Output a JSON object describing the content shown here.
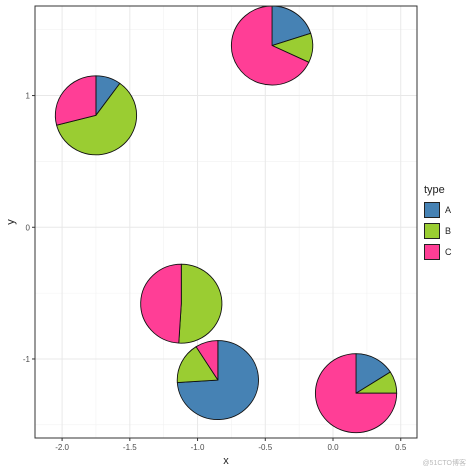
{
  "chart_data": {
    "type": "pie-scatter",
    "xlabel": "x",
    "ylabel": "y",
    "xlim": [
      -2.2,
      0.62
    ],
    "ylim": [
      -1.6,
      1.68
    ],
    "xticks": [
      -2.0,
      -1.5,
      -1.0,
      -0.5,
      0.0,
      0.5
    ],
    "xtick_labels": [
      "-2.0",
      "-1.5",
      "-1.0",
      "-0.5",
      "0.0",
      "0.5"
    ],
    "yticks": [
      -1,
      0,
      1
    ],
    "ytick_labels": [
      "-1",
      "0",
      "1"
    ],
    "grid": true,
    "legend": {
      "title": "type",
      "position": "right",
      "entries": [
        "A",
        "B",
        "C"
      ]
    },
    "colors": {
      "A": "#4682B4",
      "B": "#9ACD32",
      "C": "#FF3E96"
    },
    "pies": [
      {
        "x": -1.75,
        "y": 0.85,
        "radius": 0.3,
        "values": {
          "A": 0.1,
          "B": 0.61,
          "C": 0.29
        }
      },
      {
        "x": -0.45,
        "y": 1.38,
        "radius": 0.3,
        "values": {
          "A": 0.2,
          "B": 0.12,
          "C": 0.68
        }
      },
      {
        "x": -1.12,
        "y": -0.58,
        "radius": 0.3,
        "values": {
          "A": 0.0,
          "B": 0.51,
          "C": 0.49
        }
      },
      {
        "x": -0.85,
        "y": -1.16,
        "radius": 0.3,
        "values": {
          "A": 0.74,
          "B": 0.17,
          "C": 0.09
        }
      },
      {
        "x": 0.17,
        "y": -1.26,
        "radius": 0.3,
        "values": {
          "A": 0.16,
          "B": 0.09,
          "C": 0.75
        }
      }
    ]
  },
  "watermark": "@51CTO博客"
}
